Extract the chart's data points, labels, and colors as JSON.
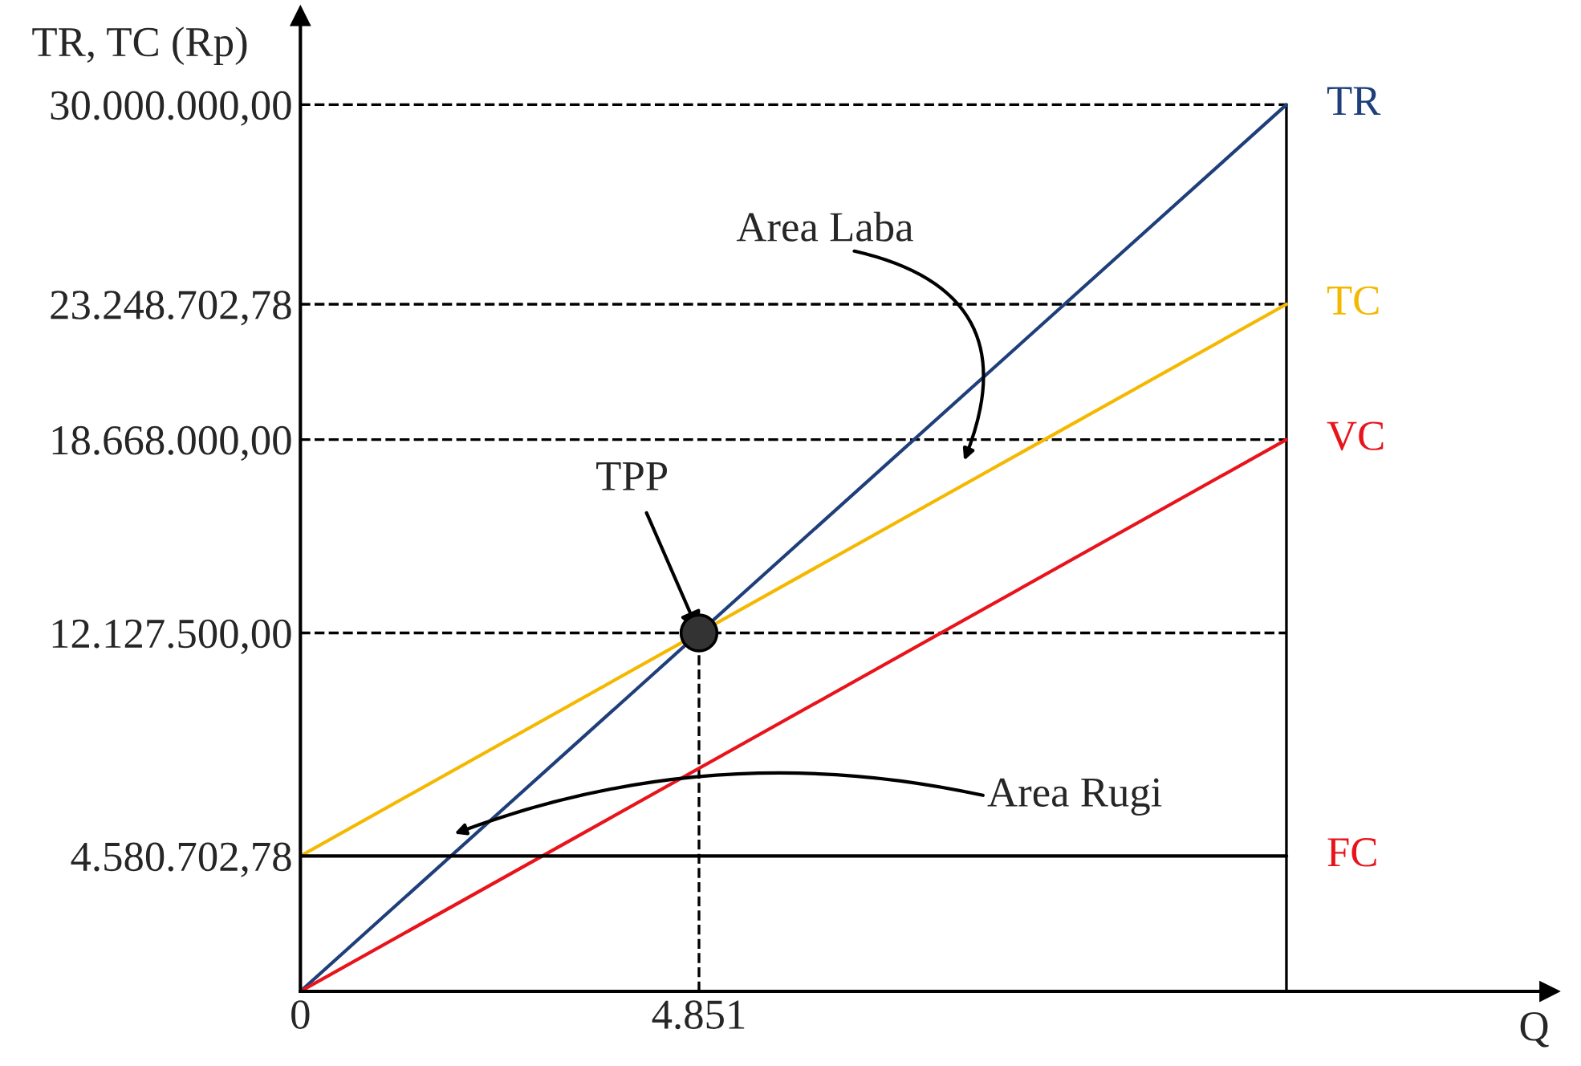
{
  "chart_data": {
    "type": "line",
    "ylabel": "TR, TC (Rp)",
    "xlabel": "Q",
    "series": [
      {
        "name": "TR",
        "color": "#1f3f7a",
        "x": [
          0,
          12000
        ],
        "values": [
          0,
          30000000
        ]
      },
      {
        "name": "TC",
        "color": "#f5b800",
        "x": [
          0,
          12000
        ],
        "values": [
          4580702.78,
          23248702.78
        ]
      },
      {
        "name": "VC",
        "color": "#e8141b",
        "x": [
          0,
          12000
        ],
        "values": [
          0,
          18668000
        ]
      },
      {
        "name": "FC",
        "color": "#000000",
        "x": [
          0,
          12000
        ],
        "values": [
          4580702.78,
          4580702.78
        ]
      },
      {
        "type": "scatter",
        "color": "#333333",
        "x": [
          4851
        ],
        "values": [
          12127500
        ],
        "marker": "circle"
      }
    ],
    "xlim": [
      0,
      15200
    ],
    "ylim": [
      0,
      33000000
    ],
    "xticks": [
      {
        "value": 0,
        "label": "0"
      },
      {
        "value": 4851,
        "label": "4.851"
      }
    ],
    "yticks": [
      {
        "value": 4580702.78,
        "label": "4.580.702,78"
      },
      {
        "value": 12127500,
        "label": "12.127.500,00"
      },
      {
        "value": 18668000,
        "label": "18.668.000,00"
      },
      {
        "value": 23248702.78,
        "label": "23.248.702,78"
      },
      {
        "value": 30000000,
        "label": "30.000.000,00"
      }
    ],
    "ref_lines": [
      {
        "axis": "y",
        "value": 30000000,
        "color": "#000000",
        "line_style": "dashed"
      },
      {
        "axis": "y",
        "value": 23248702.78,
        "color": "#000000",
        "line_style": "dashed"
      },
      {
        "axis": "y",
        "value": 18668000,
        "color": "#000000",
        "line_style": "dashed"
      },
      {
        "axis": "y",
        "value": 12127500,
        "color": "#000000",
        "line_style": "dashed"
      },
      {
        "axis": "x",
        "value": 4851,
        "color": "#000000",
        "line_style": "dashed"
      },
      {
        "axis": "x",
        "value": 12000,
        "color": "#000000",
        "line_style": "solid"
      }
    ],
    "annotations": [
      {
        "text": "TPP",
        "x": 4851,
        "y": 12127500
      },
      "Area Laba",
      "Area Rugi"
    ],
    "grid": false,
    "legend": false,
    "marker": "none",
    "line_style": "solid"
  }
}
